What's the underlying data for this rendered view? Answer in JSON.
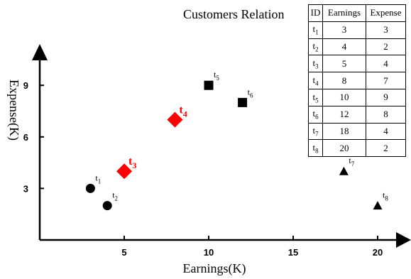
{
  "chart_data": {
    "type": "scatter",
    "xlabel": "Earnings(K)",
    "ylabel": "Expense(K)",
    "xlim": [
      0,
      21.5
    ],
    "ylim": [
      0,
      11
    ],
    "xticks": [
      5,
      10,
      15,
      20
    ],
    "yticks": [
      3,
      6,
      9
    ],
    "points": [
      {
        "id": "t1",
        "base": "t",
        "sub": "1",
        "x": 3,
        "y": 3,
        "marker": "circle",
        "color": "#000000",
        "highlight": false
      },
      {
        "id": "t2",
        "base": "t",
        "sub": "2",
        "x": 4,
        "y": 2,
        "marker": "circle",
        "color": "#000000",
        "highlight": false
      },
      {
        "id": "t3",
        "base": "t",
        "sub": "3",
        "x": 5,
        "y": 4,
        "marker": "diamond",
        "color": "#ff0000",
        "highlight": true
      },
      {
        "id": "t4",
        "base": "t",
        "sub": "4",
        "x": 8,
        "y": 7,
        "marker": "diamond",
        "color": "#ff0000",
        "highlight": true
      },
      {
        "id": "t5",
        "base": "t",
        "sub": "5",
        "x": 10,
        "y": 9,
        "marker": "square",
        "color": "#000000",
        "highlight": false
      },
      {
        "id": "t6",
        "base": "t",
        "sub": "6",
        "x": 12,
        "y": 8,
        "marker": "square",
        "color": "#000000",
        "highlight": false
      },
      {
        "id": "t7",
        "base": "t",
        "sub": "7",
        "x": 18,
        "y": 4,
        "marker": "triangle",
        "color": "#000000",
        "highlight": false
      },
      {
        "id": "t8",
        "base": "t",
        "sub": "8",
        "x": 20,
        "y": 2,
        "marker": "triangle",
        "color": "#000000",
        "highlight": false
      }
    ]
  },
  "table": {
    "title": "Customers Relation",
    "headers": [
      "ID",
      "Earnings",
      "Expense"
    ],
    "rows": [
      {
        "base": "t",
        "sub": "1",
        "earnings": "3",
        "expense": "3"
      },
      {
        "base": "t",
        "sub": "2",
        "earnings": "4",
        "expense": "2"
      },
      {
        "base": "t",
        "sub": "3",
        "earnings": "5",
        "expense": "4"
      },
      {
        "base": "t",
        "sub": "4",
        "earnings": "8",
        "expense": "7"
      },
      {
        "base": "t",
        "sub": "5",
        "earnings": "10",
        "expense": "9"
      },
      {
        "base": "t",
        "sub": "6",
        "earnings": "12",
        "expense": "8"
      },
      {
        "base": "t",
        "sub": "7",
        "earnings": "18",
        "expense": "4"
      },
      {
        "base": "t",
        "sub": "8",
        "earnings": "20",
        "expense": "2"
      }
    ]
  }
}
